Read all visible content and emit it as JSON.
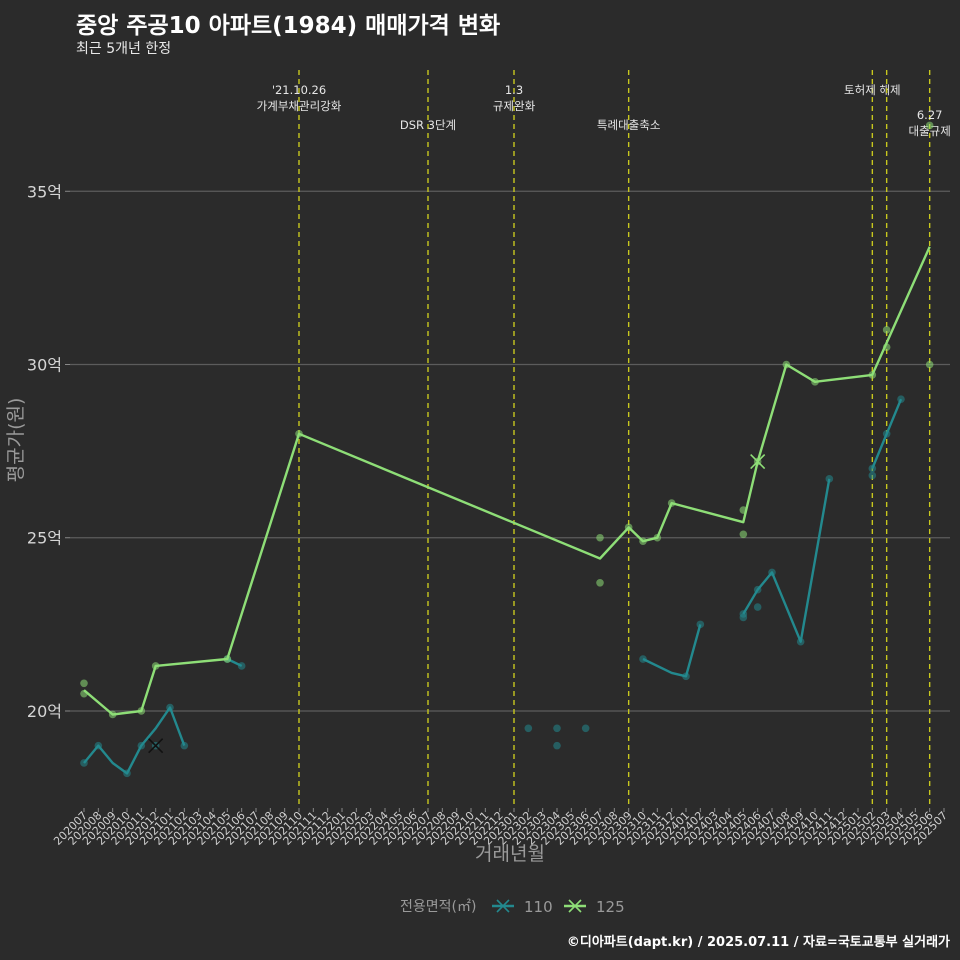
{
  "title": "중앙 주공10 아파트(1984) 매매가격 변화",
  "subtitle": "최근 5개년 한정",
  "caption": "©디아파트(dapt.kr) / 2025.07.11 / 자료=국토교통부 실거래가",
  "chart_data": {
    "type": "line",
    "xlabel": "거래년월",
    "ylabel": "평균가(원)",
    "ylim": [
      17.2,
      38.5
    ],
    "yticks": [
      {
        "v": 20,
        "label": "20억"
      },
      {
        "v": 25,
        "label": "25억"
      },
      {
        "v": 30,
        "label": "30억"
      },
      {
        "v": 35,
        "label": "35억"
      }
    ],
    "grid": "horizontal",
    "categories": [
      "202007",
      "202008",
      "202009",
      "202010",
      "202011",
      "202012",
      "202101",
      "202102",
      "202103",
      "202104",
      "202105",
      "202106",
      "202107",
      "202108",
      "202109",
      "202110",
      "202111",
      "202112",
      "202201",
      "202202",
      "202203",
      "202204",
      "202205",
      "202206",
      "202207",
      "202208",
      "202209",
      "202210",
      "202211",
      "202212",
      "202301",
      "202302",
      "202303",
      "202304",
      "202305",
      "202306",
      "202307",
      "202308",
      "202309",
      "202310",
      "202311",
      "202312",
      "202401",
      "202402",
      "202403",
      "202404",
      "202405",
      "202406",
      "202407",
      "202408",
      "202409",
      "202410",
      "202411",
      "202412",
      "202501",
      "202502",
      "202503",
      "202504",
      "202505",
      "202506",
      "202507"
    ],
    "legend": {
      "title": "전용면적(㎡)",
      "position": "bottom"
    },
    "events": [
      {
        "x": "202110",
        "label": [
          "'21.10.26",
          "가계부채관리강화"
        ],
        "row": "top"
      },
      {
        "x": "202207",
        "label": [
          "DSR 3단계"
        ],
        "row": "mid"
      },
      {
        "x": "202301",
        "label": [
          "1.3",
          "규제완화"
        ],
        "row": "top"
      },
      {
        "x": "202309",
        "label": [
          "특례대출축소"
        ],
        "row": "mid"
      },
      {
        "x": "202502",
        "label": [
          "토허제 해제"
        ],
        "row": "top"
      },
      {
        "x": "202503",
        "label": [],
        "row": "none"
      },
      {
        "x": "202506",
        "label": [
          "6.27",
          "대출규제"
        ],
        "row": "right"
      }
    ],
    "series": [
      {
        "name": "110",
        "color": "#23898e",
        "segments": [
          [
            [
              "202007",
              18.5
            ],
            [
              "202008",
              19.0
            ],
            [
              "202009",
              18.5
            ],
            [
              "202010",
              18.2
            ],
            [
              "202011",
              19.0
            ],
            [
              "202012",
              19.5
            ],
            [
              "202101",
              20.1
            ],
            [
              "202102",
              19.0
            ]
          ],
          [
            [
              "202105",
              21.5
            ],
            [
              "202106",
              21.3
            ]
          ],
          [
            [
              "202310",
              21.5
            ],
            [
              "202312",
              21.1
            ],
            [
              "202401",
              21.0
            ],
            [
              "202402",
              22.5
            ]
          ],
          [
            [
              "202405",
              22.8
            ],
            [
              "202406",
              23.5
            ],
            [
              "202407",
              24.0
            ],
            [
              "202409",
              22.0
            ],
            [
              "202411",
              26.7
            ]
          ],
          [
            [
              "202502",
              27.0
            ],
            [
              "202503",
              28.0
            ],
            [
              "202504",
              29.0
            ]
          ]
        ],
        "points": [
          [
            "202007",
            18.5
          ],
          [
            "202008",
            19.0
          ],
          [
            "202010",
            18.2
          ],
          [
            "202011",
            19.0
          ],
          [
            "202012",
            19.0
          ],
          [
            "202101",
            20.1
          ],
          [
            "202102",
            19.0
          ],
          [
            "202105",
            21.5
          ],
          [
            "202106",
            21.3
          ],
          [
            "202302",
            19.5
          ],
          [
            "202304",
            19.5
          ],
          [
            "202304",
            19.0
          ],
          [
            "202306",
            19.5
          ],
          [
            "202310",
            21.5
          ],
          [
            "202401",
            21.0
          ],
          [
            "202402",
            22.5
          ],
          [
            "202405",
            22.7
          ],
          [
            "202405",
            22.8
          ],
          [
            "202406",
            23.0
          ],
          [
            "202406",
            23.5
          ],
          [
            "202407",
            24.0
          ],
          [
            "202409",
            22.0
          ],
          [
            "202411",
            26.7
          ],
          [
            "202502",
            26.8
          ],
          [
            "202502",
            27.0
          ],
          [
            "202503",
            28.0
          ],
          [
            "202504",
            29.0
          ]
        ],
        "cross": [
          "202012",
          19.0
        ]
      },
      {
        "name": "125",
        "color": "#8ede77",
        "segments": [
          [
            [
              "202007",
              20.6
            ],
            [
              "202009",
              19.9
            ],
            [
              "202011",
              20.0
            ],
            [
              "202012",
              21.3
            ],
            [
              "202105",
              21.5
            ],
            [
              "202110",
              28.0
            ],
            [
              "202307",
              24.4
            ],
            [
              "202309",
              25.3
            ],
            [
              "202310",
              24.9
            ],
            [
              "202311",
              25.0
            ],
            [
              "202312",
              26.0
            ],
            [
              "202405",
              25.45
            ],
            [
              "202406",
              27.2
            ],
            [
              "202408",
              30.0
            ],
            [
              "202410",
              29.5
            ],
            [
              "202502",
              29.7
            ],
            [
              "202506",
              33.4
            ]
          ]
        ],
        "points": [
          [
            "202007",
            20.8
          ],
          [
            "202007",
            20.5
          ],
          [
            "202009",
            19.9
          ],
          [
            "202011",
            20.0
          ],
          [
            "202012",
            21.3
          ],
          [
            "202105",
            21.5
          ],
          [
            "202110",
            28.0
          ],
          [
            "202307",
            25.0
          ],
          [
            "202307",
            23.7
          ],
          [
            "202309",
            25.3
          ],
          [
            "202310",
            24.9
          ],
          [
            "202311",
            25.0
          ],
          [
            "202312",
            26.0
          ],
          [
            "202405",
            25.8
          ],
          [
            "202405",
            25.1
          ],
          [
            "202406",
            27.2
          ],
          [
            "202408",
            30.0
          ],
          [
            "202410",
            29.5
          ],
          [
            "202502",
            29.7
          ],
          [
            "202503",
            31.0
          ],
          [
            "202503",
            30.5
          ],
          [
            "202506",
            30.0
          ],
          [
            "202506",
            36.9
          ]
        ],
        "cross": [
          "202406",
          27.2
        ]
      }
    ]
  }
}
